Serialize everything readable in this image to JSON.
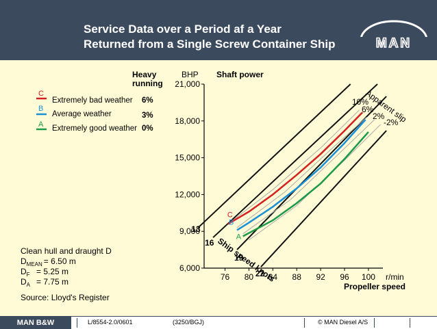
{
  "header": {
    "title_line1": "Service Data over a Period af a Year",
    "title_line2": "Returned from a Single Screw Container Ship",
    "logo_text": "MAN"
  },
  "legend": {
    "heavy_running_label_line1": "Heavy",
    "heavy_running_label_line2": "running",
    "entries": [
      {
        "letter": "C",
        "label": "Extremely bad weather",
        "value": "6%",
        "color": "#d42020"
      },
      {
        "letter": "B",
        "label": "Average weather",
        "value": "3%",
        "color": "#1a90d6"
      },
      {
        "letter": "A",
        "label": "Extremely good weather",
        "value": "0%",
        "color": "#1a9a4a"
      }
    ]
  },
  "notes": {
    "line1": "Clean hull and draught D",
    "d_mean_main": "D",
    "d_mean_sub": "MEAN",
    "d_mean_val": "= 6.50 m",
    "d_f_main": "D",
    "d_f_sub": "F",
    "d_f_val": "= 5.25 m",
    "d_a_main": "D",
    "d_a_sub": "A",
    "d_a_val": "= 7.75 m",
    "source": "Source: Lloyd's Register"
  },
  "chart_data": {
    "type": "line",
    "title": "Shaft power",
    "ylabel": "BHP",
    "xlabel": "Propeller speed",
    "x_unit": "r/min",
    "xlim": [
      72,
      102
    ],
    "ylim": [
      6000,
      21000
    ],
    "x_ticks": [
      "76",
      "80",
      "84",
      "88",
      "92",
      "96",
      "100"
    ],
    "y_ticks": [
      "6,000",
      "9,000",
      "12,000",
      "15,000",
      "18,000",
      "21,000"
    ],
    "ship_speed_label": "Ship speed knots",
    "apparent_slip_label": "Apparent slip",
    "speed_lines": [
      {
        "knots": "13",
        "points": [
          [
            71.5,
            9300
          ],
          [
            97,
            21000
          ]
        ]
      },
      {
        "knots": "16",
        "points": [
          [
            74,
            8500
          ],
          [
            101.5,
            21000
          ]
        ]
      },
      {
        "knots": "19",
        "points": [
          [
            78,
            7500
          ],
          [
            103,
            20000
          ]
        ]
      },
      {
        "knots": "22",
        "points": [
          [
            82,
            6100
          ],
          [
            103,
            17200
          ]
        ]
      }
    ],
    "slip_lines": [
      {
        "label": "10%",
        "points": [
          [
            76.5,
            9600
          ],
          [
            84,
            12400
          ],
          [
            92,
            15800
          ],
          [
            98.5,
            18900
          ]
        ]
      },
      {
        "label": "6%",
        "points": [
          [
            78,
            9300
          ],
          [
            86,
            12200
          ],
          [
            94,
            15800
          ],
          [
            99.7,
            18300
          ]
        ]
      },
      {
        "label": "2%",
        "points": [
          [
            79,
            8800
          ],
          [
            87,
            11600
          ],
          [
            95,
            15300
          ],
          [
            101,
            18100
          ]
        ]
      },
      {
        "label": "-2%",
        "points": [
          [
            80,
            8300
          ],
          [
            88,
            11100
          ],
          [
            96,
            14800
          ],
          [
            102,
            17700
          ]
        ]
      }
    ],
    "series": [
      {
        "name": "C",
        "label": "Extremely bad weather",
        "color": "#d42020",
        "points": [
          [
            76.5,
            9600
          ],
          [
            80,
            10600
          ],
          [
            84,
            12000
          ],
          [
            88,
            13600
          ],
          [
            92,
            15300
          ],
          [
            96,
            17200
          ],
          [
            99,
            18700
          ]
        ]
      },
      {
        "name": "B",
        "label": "Average weather",
        "color": "#1a90d6",
        "points": [
          [
            78,
            9100
          ],
          [
            80,
            9700
          ],
          [
            84,
            11000
          ],
          [
            88,
            12500
          ],
          [
            92,
            14200
          ],
          [
            96,
            16200
          ],
          [
            99.5,
            18100
          ]
        ]
      },
      {
        "name": "A",
        "label": "Extremely good weather",
        "color": "#1a9a4a",
        "points": [
          [
            79,
            8600
          ],
          [
            84,
            9900
          ],
          [
            88,
            11300
          ],
          [
            92,
            12900
          ],
          [
            96,
            14900
          ],
          [
            100,
            17100
          ]
        ]
      }
    ]
  },
  "footer": {
    "brand": "MAN B&W",
    "doc_id": "L/8554-2.0/0601",
    "ref": "(3250/BGJ)",
    "copyright": "© MAN Diesel A/S"
  }
}
